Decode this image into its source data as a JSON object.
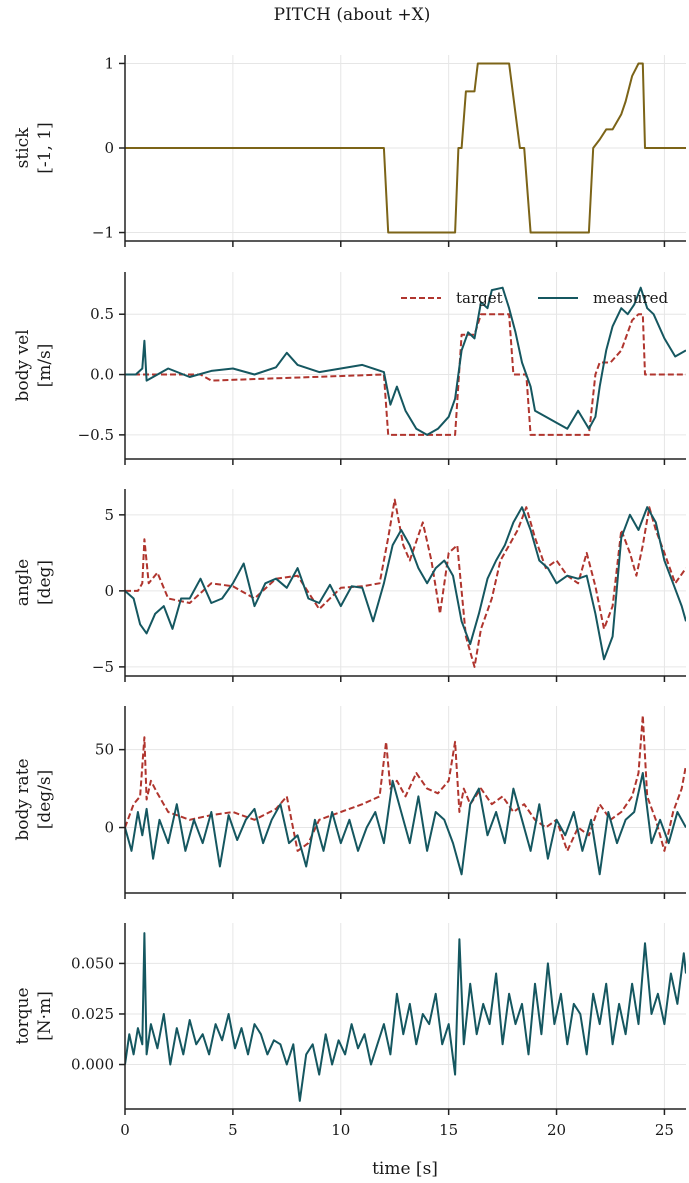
{
  "colors": {
    "target": "#b0352e",
    "measured": "#155760",
    "stick": "#7c6418",
    "grid": "#e6e6e6",
    "axis": "#222222"
  },
  "chart_data": [
    {
      "type": "line",
      "title": "PITCH  (about +X)",
      "ylabel": [
        "stick",
        "[-1, 1]"
      ],
      "xlim": [
        0,
        26
      ],
      "ylim": [
        -1.1,
        1.1
      ],
      "yticks": [
        {
          "v": 1,
          "label": "1"
        },
        {
          "v": 0,
          "label": "0"
        },
        {
          "v": -1,
          "label": "−1"
        }
      ],
      "series": [
        {
          "color": "stick",
          "style": "solid",
          "x": [
            0,
            12.0,
            12.2,
            15.3,
            15.45,
            15.6,
            15.8,
            16.2,
            16.35,
            17.8,
            18.3,
            18.5,
            18.8,
            21.5,
            21.7,
            22.0,
            22.3,
            22.6,
            23.0,
            23.2,
            23.5,
            23.8,
            24.0,
            24.1,
            26
          ],
          "y": [
            0,
            0,
            -1,
            -1,
            0,
            0,
            0.67,
            0.67,
            1,
            1,
            0,
            0,
            -1,
            -1,
            0,
            0.1,
            0.22,
            0.22,
            0.4,
            0.55,
            0.85,
            1,
            1,
            0,
            0
          ]
        }
      ]
    },
    {
      "type": "line",
      "ylabel": [
        "body vel",
        "[m/s]"
      ],
      "xlim": [
        0,
        26
      ],
      "ylim": [
        -0.7,
        0.85
      ],
      "yticks": [
        {
          "v": 0.5,
          "label": "0.5"
        },
        {
          "v": 0,
          "label": "0.0"
        },
        {
          "v": -0.5,
          "label": "−0.5"
        }
      ],
      "legend": {
        "placement": "upper-right",
        "entries": [
          {
            "label": "target",
            "color": "target",
            "style": "dashed"
          },
          {
            "label": "measured",
            "color": "measured",
            "style": "solid"
          }
        ]
      },
      "series": [
        {
          "color": "target",
          "style": "dashed",
          "x": [
            0,
            3.5,
            4.0,
            12.0,
            12.2,
            15.3,
            15.6,
            16.2,
            16.5,
            17.8,
            18.0,
            18.6,
            18.8,
            21.5,
            21.8,
            22.0,
            22.5,
            23.0,
            23.5,
            23.8,
            24.0,
            24.1,
            26
          ],
          "y": [
            0,
            0,
            -0.05,
            0,
            -0.5,
            -0.5,
            0.33,
            0.33,
            0.5,
            0.5,
            0,
            0,
            -0.5,
            -0.5,
            0,
            0.1,
            0.1,
            0.2,
            0.45,
            0.5,
            0.5,
            0,
            0
          ]
        },
        {
          "color": "measured",
          "style": "solid",
          "x": [
            0,
            0.5,
            0.8,
            0.9,
            1.0,
            2.0,
            3.0,
            4.0,
            5.0,
            6.0,
            7.0,
            7.5,
            8.0,
            9.0,
            10.0,
            11.0,
            12.0,
            12.3,
            12.6,
            13.0,
            13.5,
            14.0,
            14.5,
            15.0,
            15.3,
            15.6,
            15.9,
            16.2,
            16.5,
            16.8,
            17.0,
            17.5,
            17.8,
            18.1,
            18.4,
            18.8,
            19.0,
            19.5,
            20.0,
            20.5,
            21.0,
            21.5,
            21.8,
            22.0,
            22.3,
            22.6,
            23.0,
            23.3,
            23.6,
            23.9,
            24.2,
            24.5,
            25.0,
            25.5,
            26
          ],
          "y": [
            0,
            0,
            0.05,
            0.28,
            -0.05,
            0.05,
            -0.02,
            0.03,
            0.05,
            0.0,
            0.06,
            0.18,
            0.08,
            0.02,
            0.05,
            0.08,
            0.02,
            -0.25,
            -0.1,
            -0.3,
            -0.45,
            -0.5,
            -0.45,
            -0.35,
            -0.2,
            0.2,
            0.35,
            0.3,
            0.6,
            0.55,
            0.7,
            0.72,
            0.55,
            0.35,
            0.1,
            -0.1,
            -0.3,
            -0.35,
            -0.4,
            -0.45,
            -0.3,
            -0.45,
            -0.35,
            -0.1,
            0.2,
            0.4,
            0.55,
            0.5,
            0.58,
            0.72,
            0.55,
            0.5,
            0.3,
            0.15,
            0.2
          ]
        }
      ]
    },
    {
      "type": "line",
      "ylabel": [
        "angle",
        "[deg]"
      ],
      "xlim": [
        0,
        26
      ],
      "ylim": [
        -5.6,
        6.7
      ],
      "yticks": [
        {
          "v": 5,
          "label": "5"
        },
        {
          "v": 0,
          "label": "0"
        },
        {
          "v": -5,
          "label": "−5"
        }
      ],
      "series": [
        {
          "color": "target",
          "style": "dashed",
          "x": [
            0,
            0.6,
            0.8,
            0.9,
            1.1,
            1.5,
            2.0,
            3.0,
            4.0,
            5.0,
            6.0,
            7.0,
            8.0,
            9.0,
            10.0,
            11.0,
            11.8,
            12.2,
            12.5,
            12.9,
            13.2,
            13.8,
            14.2,
            14.6,
            15.0,
            15.4,
            15.8,
            16.2,
            16.5,
            17.0,
            17.4,
            17.8,
            18.2,
            18.6,
            19.0,
            19.5,
            20.0,
            20.5,
            21.0,
            21.4,
            21.8,
            22.2,
            22.6,
            23.0,
            23.4,
            23.7,
            24.0,
            24.3,
            24.6,
            25.0,
            25.5,
            26
          ],
          "y": [
            0,
            0,
            0.5,
            3.4,
            0.5,
            1.2,
            -0.5,
            -0.8,
            0.5,
            0.3,
            -0.5,
            0.8,
            1.0,
            -1.2,
            0.2,
            0.3,
            0.5,
            3.5,
            6.0,
            3.0,
            2.0,
            4.5,
            2.0,
            -1.5,
            2.5,
            3.0,
            -3.0,
            -5.0,
            -2.5,
            -0.5,
            2.0,
            3.0,
            4.0,
            5.5,
            3.5,
            1.5,
            2.0,
            1.0,
            0.5,
            2.5,
            0.3,
            -2.5,
            -1.0,
            4.0,
            2.5,
            1.0,
            3.0,
            5.5,
            4.0,
            2.5,
            0.5,
            1.5
          ]
        },
        {
          "color": "measured",
          "style": "solid",
          "x": [
            0,
            0.4,
            0.7,
            1.0,
            1.4,
            1.8,
            2.2,
            2.6,
            3.0,
            3.5,
            4.0,
            4.5,
            5.0,
            5.5,
            6.0,
            6.5,
            7.0,
            7.5,
            8.0,
            8.5,
            9.0,
            9.5,
            10.0,
            10.5,
            11.0,
            11.5,
            12.0,
            12.4,
            12.8,
            13.2,
            13.6,
            14.0,
            14.4,
            14.8,
            15.2,
            15.6,
            16.0,
            16.4,
            16.8,
            17.2,
            17.6,
            18.0,
            18.4,
            18.8,
            19.2,
            19.6,
            20.0,
            20.5,
            21.0,
            21.4,
            21.8,
            22.2,
            22.6,
            23.0,
            23.4,
            23.8,
            24.2,
            24.6,
            25.0,
            25.4,
            25.8,
            26
          ],
          "y": [
            0,
            -0.5,
            -2.2,
            -2.8,
            -1.5,
            -1.0,
            -2.5,
            -0.5,
            -0.5,
            0.8,
            -0.8,
            -0.5,
            0.5,
            1.8,
            -1.0,
            0.5,
            0.8,
            0.2,
            1.5,
            -0.5,
            -0.8,
            0.4,
            -1.0,
            0.3,
            0.2,
            -2.0,
            0.5,
            3.0,
            4.0,
            3.0,
            1.5,
            0.5,
            1.5,
            2.0,
            1.0,
            -2.0,
            -3.5,
            -1.5,
            0.8,
            2.0,
            3.0,
            4.5,
            5.5,
            4.0,
            2.0,
            1.5,
            0.5,
            1.0,
            0.8,
            1.0,
            -1.5,
            -4.5,
            -3.0,
            3.5,
            5.0,
            4.0,
            5.5,
            4.5,
            2.0,
            0.5,
            -1.0,
            -2.0
          ]
        }
      ]
    },
    {
      "type": "line",
      "ylabel": [
        "body rate",
        "[deg/s]"
      ],
      "xlim": [
        0,
        26
      ],
      "ylim": [
        -42,
        78
      ],
      "yticks": [
        {
          "v": 50,
          "label": "50"
        },
        {
          "v": 0,
          "label": "0"
        }
      ],
      "series": [
        {
          "color": "target",
          "style": "dashed",
          "x": [
            0,
            0.4,
            0.7,
            0.9,
            1.0,
            1.2,
            1.5,
            2.0,
            3.0,
            4.0,
            5.0,
            6.0,
            7.0,
            7.5,
            8.0,
            8.5,
            9.0,
            10.0,
            11.0,
            11.8,
            12.1,
            12.3,
            12.6,
            13.0,
            13.5,
            14.0,
            14.5,
            15.0,
            15.3,
            15.5,
            15.7,
            16.0,
            16.5,
            17.0,
            17.5,
            18.0,
            18.5,
            19.0,
            19.5,
            20.0,
            20.5,
            21.0,
            21.5,
            22.0,
            22.5,
            23.0,
            23.5,
            23.8,
            24.0,
            24.2,
            24.6,
            25.0,
            25.4,
            25.8,
            26
          ],
          "y": [
            0,
            15,
            20,
            58,
            18,
            30,
            22,
            10,
            5,
            8,
            10,
            5,
            12,
            20,
            -15,
            -10,
            5,
            10,
            15,
            20,
            55,
            25,
            30,
            20,
            35,
            25,
            22,
            30,
            55,
            10,
            25,
            15,
            25,
            15,
            20,
            10,
            15,
            5,
            0,
            5,
            -15,
            0,
            -5,
            15,
            5,
            10,
            20,
            35,
            72,
            20,
            5,
            -15,
            10,
            25,
            40
          ]
        },
        {
          "color": "measured",
          "style": "solid",
          "x": [
            0,
            0.3,
            0.6,
            0.8,
            1.0,
            1.3,
            1.6,
            2.0,
            2.4,
            2.8,
            3.2,
            3.6,
            4.0,
            4.4,
            4.8,
            5.2,
            5.6,
            6.0,
            6.4,
            6.8,
            7.2,
            7.6,
            8.0,
            8.4,
            8.8,
            9.2,
            9.6,
            10.0,
            10.4,
            10.8,
            11.2,
            11.6,
            12.0,
            12.4,
            12.8,
            13.2,
            13.6,
            14.0,
            14.4,
            14.8,
            15.2,
            15.6,
            16.0,
            16.4,
            16.8,
            17.2,
            17.6,
            18.0,
            18.4,
            18.8,
            19.2,
            19.6,
            20.0,
            20.4,
            20.8,
            21.2,
            21.6,
            22.0,
            22.4,
            22.8,
            23.2,
            23.6,
            24.0,
            24.4,
            24.8,
            25.2,
            25.6,
            26
          ],
          "y": [
            0,
            -15,
            10,
            -5,
            12,
            -20,
            5,
            -10,
            15,
            -15,
            5,
            -10,
            10,
            -25,
            8,
            -8,
            5,
            12,
            -10,
            5,
            15,
            -10,
            -5,
            -25,
            5,
            -15,
            10,
            -10,
            5,
            -15,
            0,
            10,
            -10,
            30,
            10,
            -10,
            20,
            -15,
            10,
            5,
            -10,
            -30,
            15,
            25,
            -5,
            10,
            -10,
            25,
            5,
            -15,
            15,
            -20,
            5,
            -5,
            10,
            -15,
            5,
            -30,
            10,
            -10,
            5,
            10,
            35,
            -10,
            5,
            -10,
            10,
            0
          ]
        }
      ]
    },
    {
      "type": "line",
      "ylabel": [
        "torque",
        "[N·m]"
      ],
      "xlabel": "time [s]",
      "xlim": [
        0,
        26
      ],
      "ylim": [
        -0.022,
        0.07
      ],
      "yticks": [
        {
          "v": 0.05,
          "label": "0.050"
        },
        {
          "v": 0.025,
          "label": "0.025"
        },
        {
          "v": 0,
          "label": "0.000"
        }
      ],
      "xticks": [
        {
          "v": 0,
          "label": "0"
        },
        {
          "v": 5,
          "label": "5"
        },
        {
          "v": 10,
          "label": "10"
        },
        {
          "v": 15,
          "label": "15"
        },
        {
          "v": 20,
          "label": "20"
        },
        {
          "v": 25,
          "label": "25"
        }
      ],
      "series": [
        {
          "color": "measured",
          "style": "solid",
          "x": [
            0,
            0.2,
            0.4,
            0.6,
            0.8,
            0.9,
            1.0,
            1.2,
            1.5,
            1.8,
            2.1,
            2.4,
            2.7,
            3.0,
            3.3,
            3.6,
            3.9,
            4.2,
            4.5,
            4.8,
            5.1,
            5.4,
            5.7,
            6.0,
            6.3,
            6.6,
            6.9,
            7.2,
            7.5,
            7.8,
            8.1,
            8.4,
            8.7,
            9.0,
            9.3,
            9.6,
            9.9,
            10.2,
            10.5,
            10.8,
            11.1,
            11.4,
            11.7,
            12.0,
            12.3,
            12.6,
            12.9,
            13.2,
            13.5,
            13.8,
            14.1,
            14.4,
            14.7,
            15.0,
            15.3,
            15.5,
            15.7,
            16.0,
            16.3,
            16.6,
            16.9,
            17.2,
            17.5,
            17.8,
            18.1,
            18.4,
            18.7,
            19.0,
            19.3,
            19.6,
            19.9,
            20.2,
            20.5,
            20.8,
            21.1,
            21.4,
            21.7,
            22.0,
            22.3,
            22.6,
            22.9,
            23.2,
            23.5,
            23.8,
            24.1,
            24.4,
            24.7,
            25.0,
            25.3,
            25.6,
            25.9,
            26
          ],
          "y": [
            0,
            0.015,
            0.005,
            0.018,
            0.01,
            0.065,
            0.005,
            0.02,
            0.008,
            0.025,
            0.0,
            0.018,
            0.005,
            0.022,
            0.01,
            0.015,
            0.005,
            0.02,
            0.012,
            0.025,
            0.008,
            0.018,
            0.005,
            0.02,
            0.015,
            0.005,
            0.012,
            0.01,
            0.0,
            0.01,
            -0.018,
            0.005,
            0.01,
            -0.005,
            0.015,
            0.0,
            0.012,
            0.005,
            0.02,
            0.008,
            0.015,
            0.0,
            0.01,
            0.02,
            0.005,
            0.035,
            0.015,
            0.03,
            0.01,
            0.025,
            0.02,
            0.035,
            0.01,
            0.02,
            -0.005,
            0.062,
            0.01,
            0.04,
            0.015,
            0.03,
            0.02,
            0.045,
            0.01,
            0.035,
            0.02,
            0.03,
            0.005,
            0.04,
            0.015,
            0.05,
            0.02,
            0.035,
            0.01,
            0.03,
            0.025,
            0.005,
            0.035,
            0.02,
            0.04,
            0.01,
            0.03,
            0.015,
            0.04,
            0.02,
            0.06,
            0.025,
            0.035,
            0.02,
            0.045,
            0.03,
            0.055,
            0.045
          ]
        }
      ]
    }
  ]
}
